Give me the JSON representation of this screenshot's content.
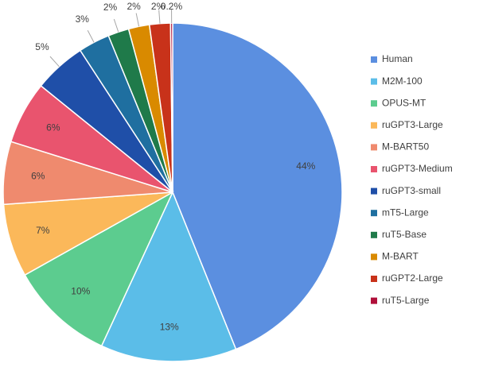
{
  "chart_data": {
    "type": "pie",
    "categories": [
      "Human",
      "M2M-100",
      "OPUS-MT",
      "ruGPT3-Large",
      "M-BART50",
      "ruGPT3-Medium",
      "ruGPT3-small",
      "mT5-Large",
      "ruT5-Base",
      "M-BART",
      "ruGPT2-Large",
      "ruT5-Large"
    ],
    "values": [
      44,
      13,
      10,
      7,
      6,
      6,
      5,
      3,
      2,
      2,
      2,
      0.2
    ],
    "value_labels": [
      "44%",
      "13%",
      "10%",
      "7%",
      "6%",
      "6%",
      "5%",
      "3%",
      "2%",
      "2%",
      "2%",
      "0.2%"
    ],
    "colors": [
      "#5b8fe0",
      "#5bbde8",
      "#5ccc8f",
      "#fbb85a",
      "#ef8a6e",
      "#e9546e",
      "#1f4fa8",
      "#1f6fa0",
      "#1f7a4a",
      "#d98a00",
      "#c8321a",
      "#b0103a"
    ],
    "legend": "right"
  }
}
